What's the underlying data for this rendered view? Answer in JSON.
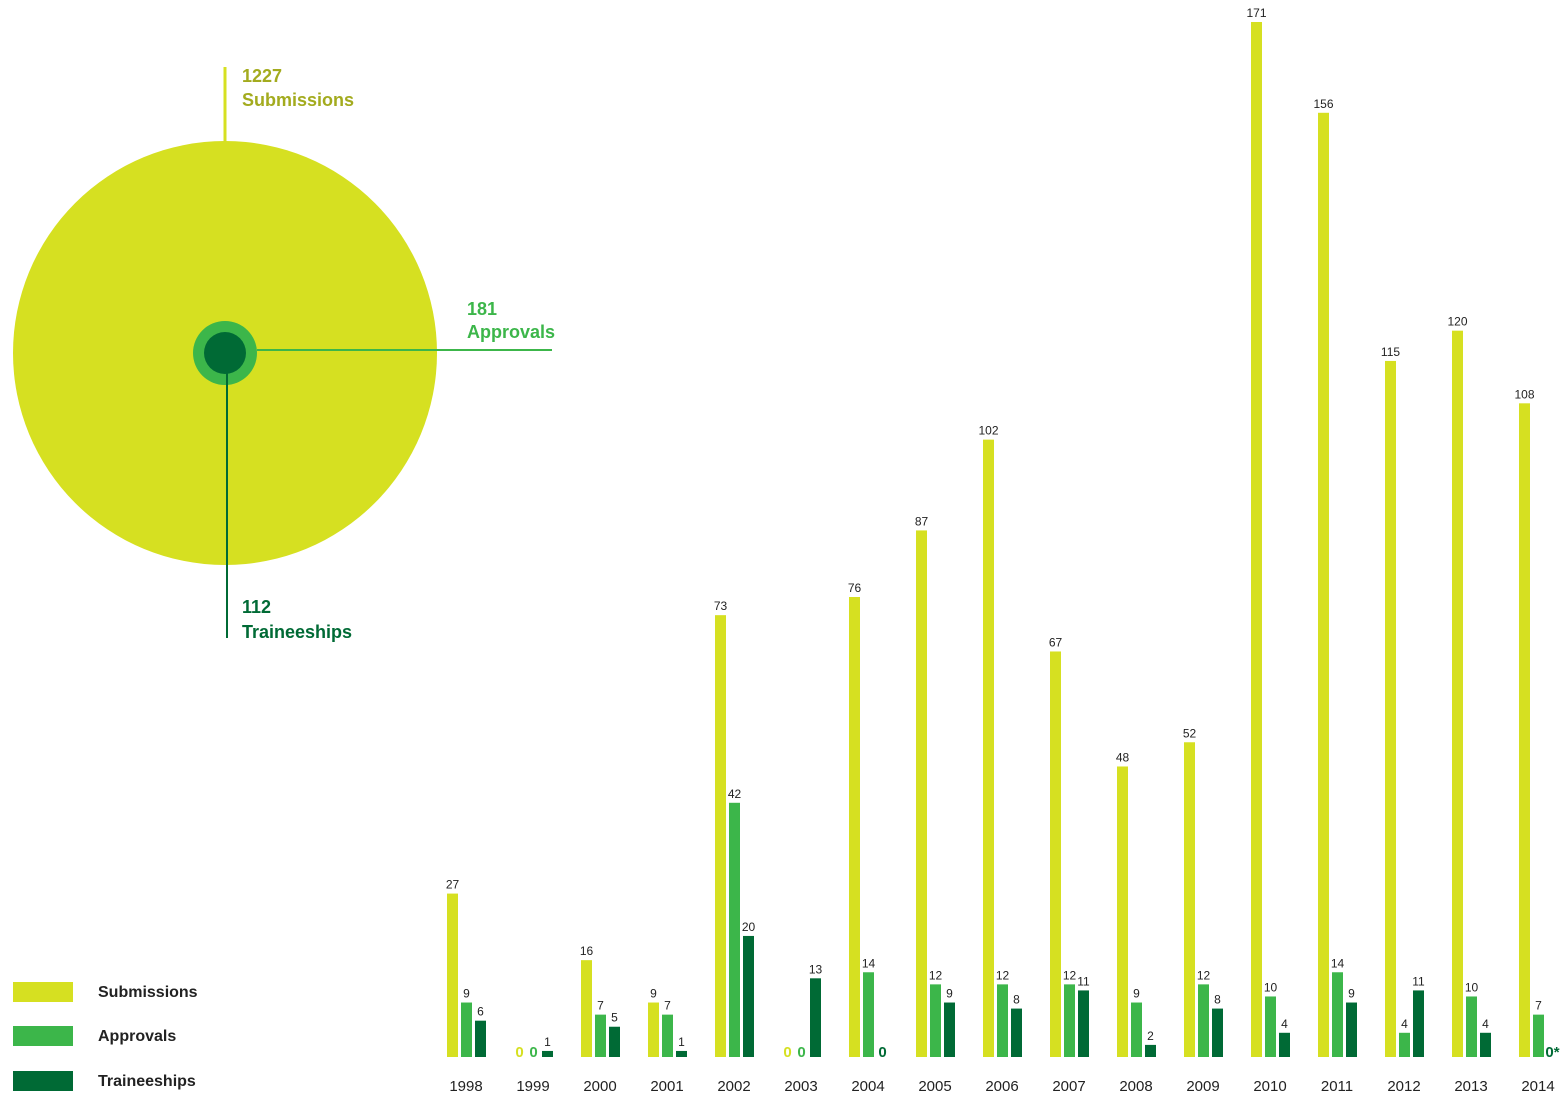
{
  "colors": {
    "submissions": "#d6e021",
    "approvals": "#3cb64a",
    "traineeships": "#006a35",
    "submissions_text": "#a3ab1e",
    "approvals_text": "#3cb64a",
    "traineeships_text": "#006a35"
  },
  "summary": {
    "submissions": {
      "value": "1227",
      "label": "Submissions"
    },
    "approvals": {
      "value": "181",
      "label": "Approvals"
    },
    "traineeships": {
      "value": "112",
      "label": "Traineeships"
    }
  },
  "legend": [
    {
      "key": "submissions",
      "label": "Submissions"
    },
    {
      "key": "approvals",
      "label": "Approvals"
    },
    {
      "key": "traineeships",
      "label": "Traineeships"
    }
  ],
  "chart_data": {
    "type": "bar",
    "categories": [
      "1998",
      "1999",
      "2000",
      "2001",
      "2002",
      "2003",
      "2004",
      "2005",
      "2006",
      "2007",
      "2008",
      "2009",
      "2010",
      "2011",
      "2012",
      "2013",
      "2014"
    ],
    "series": [
      {
        "name": "Submissions",
        "key": "submissions",
        "values": [
          27,
          0,
          16,
          9,
          73,
          0,
          76,
          87,
          102,
          67,
          48,
          52,
          171,
          156,
          115,
          120,
          108
        ]
      },
      {
        "name": "Approvals",
        "key": "approvals",
        "values": [
          9,
          0,
          7,
          7,
          42,
          0,
          14,
          12,
          12,
          12,
          9,
          12,
          10,
          14,
          4,
          10,
          7
        ]
      },
      {
        "name": "Traineeships",
        "key": "traineeships",
        "values": [
          6,
          1,
          5,
          1,
          20,
          13,
          0,
          9,
          8,
          11,
          2,
          8,
          4,
          9,
          11,
          4,
          0
        ]
      }
    ],
    "value_labels": [
      [
        "27",
        "0",
        "16",
        "9",
        "73",
        "0",
        "76",
        "87",
        "102",
        "67",
        "48",
        "52",
        "171",
        "156",
        "115",
        "120",
        "108"
      ],
      [
        "9",
        "0",
        "7",
        "7",
        "42",
        "0",
        "14",
        "12",
        "12",
        "12",
        "9",
        "12",
        "10",
        "14",
        "4",
        "10",
        "7"
      ],
      [
        "6",
        "1",
        "5",
        "1",
        "20",
        "13",
        "0",
        "9",
        "8",
        "11",
        "2",
        "8",
        "4",
        "9",
        "11",
        "4",
        "0*"
      ]
    ],
    "ylim": [
      0,
      171
    ],
    "grid": false,
    "legend_position": "bottom-left"
  }
}
